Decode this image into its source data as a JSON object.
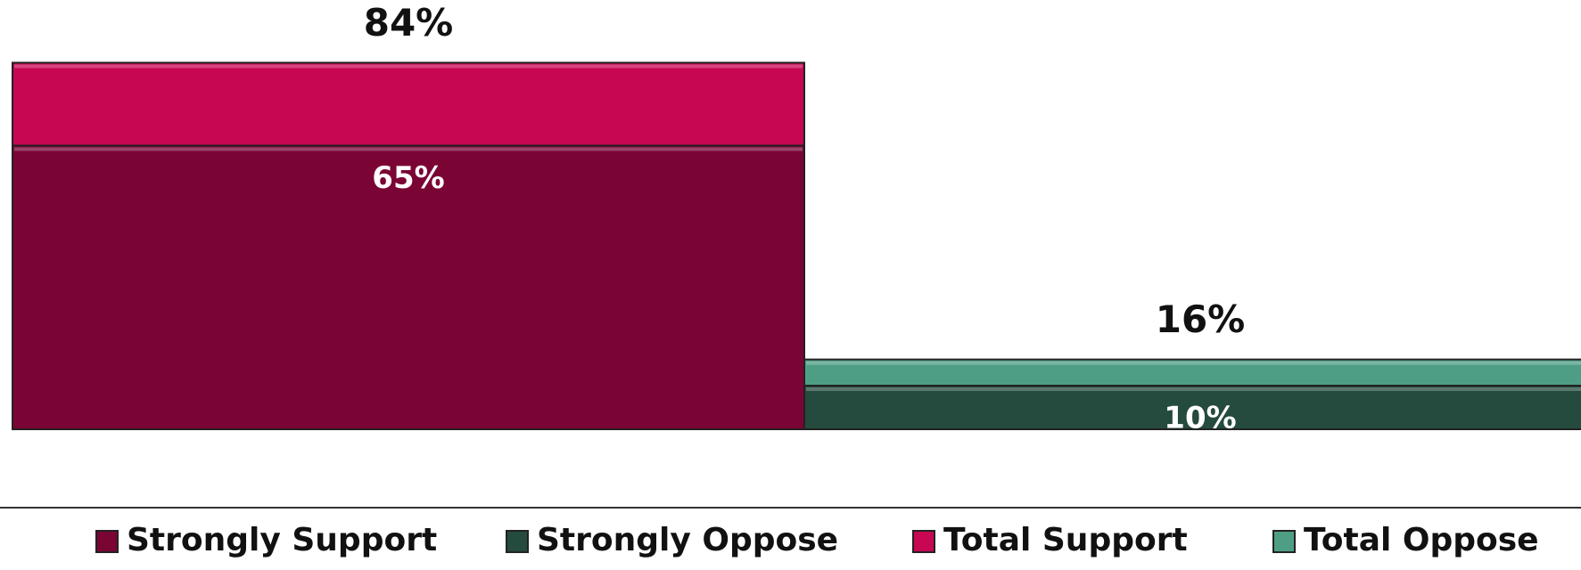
{
  "chart_data": {
    "type": "bar",
    "series": [
      {
        "name": "Strongly Support",
        "color": "#7a0535",
        "values": [
          65,
          null
        ],
        "value_labels": [
          "65%",
          null
        ],
        "label_position": "inside"
      },
      {
        "name": "Strongly Oppose",
        "color": "#254a3e",
        "values": [
          null,
          10
        ],
        "value_labels": [
          null,
          "10%"
        ],
        "label_position": "inside"
      },
      {
        "name": "Total Support",
        "color": "#c70752",
        "values": [
          84,
          null
        ],
        "value_labels": [
          "84%",
          null
        ],
        "label_position": "above"
      },
      {
        "name": "Total Oppose",
        "color": "#4e9e86",
        "values": [
          null,
          16
        ],
        "value_labels": [
          null,
          "16%"
        ],
        "label_position": "above"
      }
    ],
    "ylim": [
      0,
      100
    ],
    "legend": "bottom"
  }
}
